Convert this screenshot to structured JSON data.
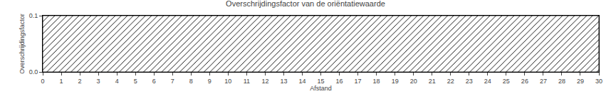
{
  "chart_data": {
    "type": "bar",
    "title": "Overschrijdingsfactor van de oriëntatiewaarde",
    "xlabel": "Afstand",
    "ylabel": "Overschrijdingsfactor",
    "x": [
      0
    ],
    "widths": [
      30
    ],
    "values": [
      0.1
    ],
    "color": "#a8cfe0",
    "xlim": [
      0,
      30
    ],
    "ylim": [
      0.0,
      0.1
    ],
    "xticks": [
      0,
      1,
      2,
      3,
      4,
      5,
      6,
      7,
      8,
      9,
      10,
      11,
      12,
      13,
      14,
      15,
      16,
      17,
      18,
      19,
      20,
      21,
      22,
      23,
      24,
      25,
      26,
      27,
      28,
      29,
      30
    ],
    "yticks": [
      {
        "value": 0.0,
        "label": "0.0"
      },
      {
        "value": 0.1,
        "label": "0.1"
      }
    ],
    "grid": false
  }
}
